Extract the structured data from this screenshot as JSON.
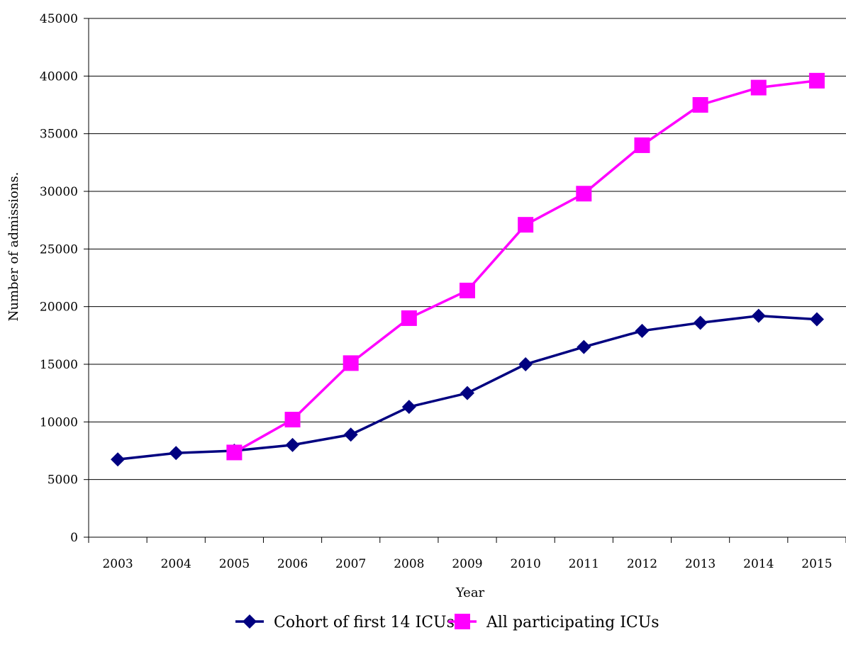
{
  "chart_data": {
    "type": "line",
    "xlabel": "Year",
    "ylabel": "Number of admissions.",
    "categories": [
      "2003",
      "2004",
      "2005",
      "2006",
      "2007",
      "2008",
      "2009",
      "2010",
      "2011",
      "2012",
      "2013",
      "2014",
      "2015"
    ],
    "ylim": [
      0,
      45000
    ],
    "yticks": [
      0,
      5000,
      10000,
      15000,
      20000,
      25000,
      30000,
      35000,
      40000,
      45000
    ],
    "grid": "horizontal",
    "legend_position": "bottom",
    "series": [
      {
        "name": "Cohort of first 14 ICUs",
        "color": "#000080",
        "marker": "diamond",
        "values": [
          6750,
          7300,
          7500,
          8000,
          8900,
          11300,
          12500,
          15000,
          16500,
          17900,
          18600,
          19200,
          18900
        ]
      },
      {
        "name": "All participating ICUs",
        "color": "#ff00ff",
        "marker": "square",
        "values": [
          null,
          null,
          7350,
          10200,
          15100,
          19000,
          21400,
          27100,
          29800,
          34000,
          37500,
          39000,
          39600
        ]
      }
    ]
  }
}
